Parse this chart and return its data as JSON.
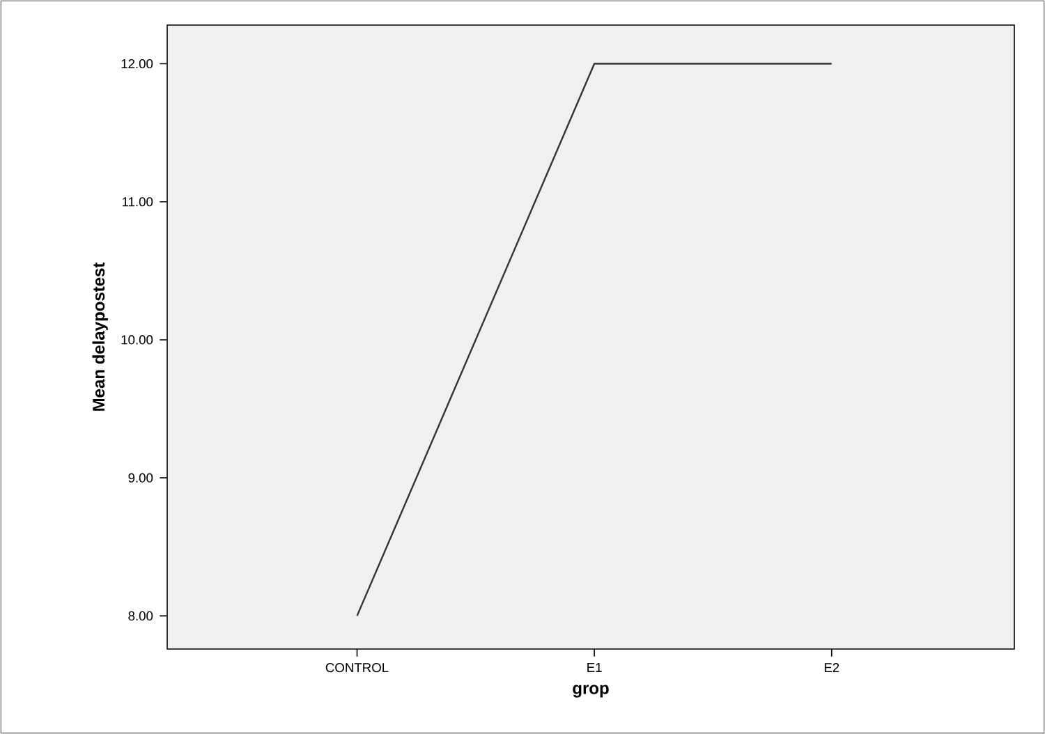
{
  "chart_data": {
    "type": "line",
    "xlabel": "grop",
    "ylabel": "Mean delaypostest",
    "categories": [
      "CONTROL",
      "E1",
      "E2"
    ],
    "series": [
      {
        "color": "#333333",
        "values": [
          8.0,
          12.0,
          12.0
        ]
      }
    ],
    "ylim": [
      7.76,
      12.28
    ],
    "yticks": [
      {
        "value": 8,
        "label": "8.00"
      },
      {
        "value": 9,
        "label": "9.00"
      },
      {
        "value": 10,
        "label": "10.00"
      },
      {
        "value": 11,
        "label": "11.00"
      },
      {
        "value": 12,
        "label": "12.00"
      }
    ],
    "marker": "none",
    "line_style": "solid",
    "grid": false
  }
}
